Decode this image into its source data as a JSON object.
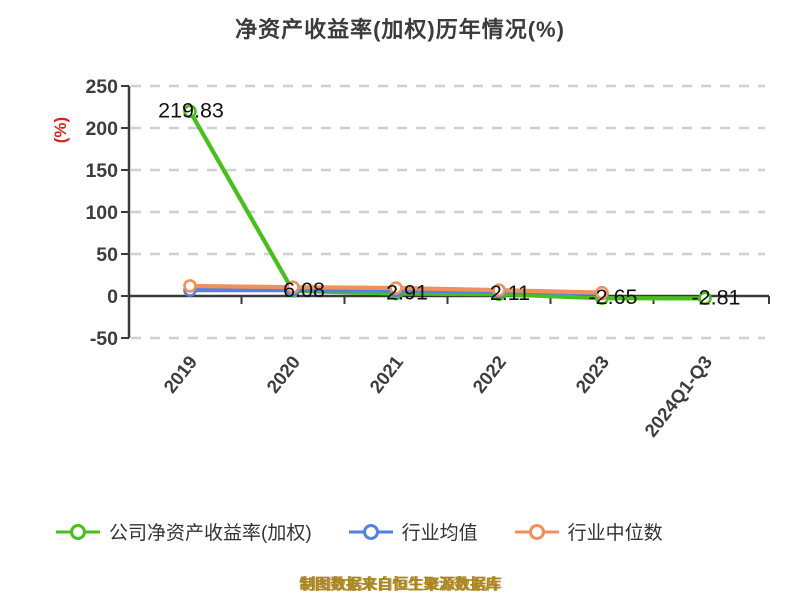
{
  "title": "净资产收益率(加权)历年情况(%)",
  "footer": "制图数据来自恒生聚源数据库",
  "y_axis": {
    "name": "(%)",
    "name_color": "#e02020"
  },
  "legend": {
    "items": [
      {
        "label": "公司净资产收益率(加权)",
        "color": "#45c21a"
      },
      {
        "label": "行业均值",
        "color": "#5182e3"
      },
      {
        "label": "行业中位数",
        "color": "#f0915c"
      }
    ]
  },
  "colors": {
    "company_green": "#45c21a",
    "industry_mean_blue": "#5182e3",
    "industry_median_orange": "#f0915c",
    "axis_dark": "#3a3a3a",
    "grid_gray": "#cfcfcf",
    "tick_label": "#3d3d3d",
    "point_label": "#101010",
    "title_color": "#3b3b3b",
    "footer_gold": "#aa841e"
  },
  "chart_data": {
    "type": "line",
    "title": "净资产收益率(加权)历年情况(%)",
    "categories": [
      "2019",
      "2020",
      "2021",
      "2022",
      "2023",
      "2024Q1-Q3"
    ],
    "series": [
      {
        "name": "公司净资产收益率(加权)",
        "color": "#45c21a",
        "values": [
          219.83,
          6.08,
          2.91,
          2.11,
          -2.65,
          -2.81
        ],
        "labels": [
          "219.83",
          "6.08",
          "2.91",
          "2.11",
          "-2.65",
          "-2.81"
        ]
      },
      {
        "name": "行业均值",
        "color": "#5182e3",
        "values": [
          7,
          7,
          6.5,
          5.5,
          3,
          null
        ]
      },
      {
        "name": "行业中位数",
        "color": "#f0915c",
        "values": [
          12,
          10.5,
          9.5,
          7,
          4,
          null
        ]
      }
    ],
    "ylabel": "(%)",
    "xlabel": "",
    "ylim": [
      -50,
      250
    ],
    "yticks": [
      250,
      200,
      150,
      100,
      50,
      0,
      -50
    ],
    "grid": "dashed horizontal gridlines, solid x-axis on zero",
    "legend_position": "bottom"
  }
}
